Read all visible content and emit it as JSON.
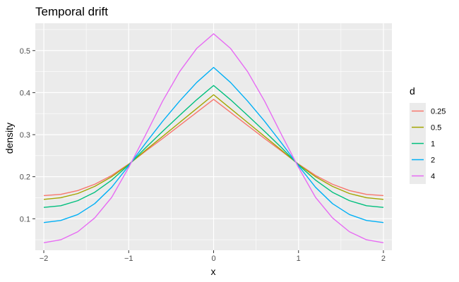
{
  "chart_data": {
    "type": "line",
    "title": "Temporal drift",
    "xlabel": "x",
    "ylabel": "density",
    "xlim": [
      -2.1,
      2.1
    ],
    "ylim": [
      0.025,
      0.565
    ],
    "x_ticks": [
      -2,
      -1,
      0,
      1,
      2
    ],
    "x_tick_labels": [
      "−2",
      "−1",
      "0",
      "1",
      "2"
    ],
    "y_ticks": [
      0.1,
      0.2,
      0.3,
      0.4,
      0.5
    ],
    "y_tick_labels": [
      "0.1",
      "0.2",
      "0.3",
      "0.4",
      "0.5"
    ],
    "grid": true,
    "legend_position": "right",
    "legend_title": "d",
    "x": [
      -2.0,
      -1.8,
      -1.6,
      -1.4,
      -1.2,
      -1.0,
      -0.8,
      -0.6,
      -0.4,
      -0.2,
      0.0,
      0.2,
      0.4,
      0.6,
      0.8,
      1.0,
      1.2,
      1.4,
      1.6,
      1.8,
      2.0
    ],
    "series": [
      {
        "name": "0.25",
        "color": "#F8766D",
        "values": [
          0.155,
          0.158,
          0.167,
          0.182,
          0.203,
          0.23,
          0.261,
          0.291,
          0.322,
          0.353,
          0.384,
          0.353,
          0.322,
          0.291,
          0.261,
          0.23,
          0.203,
          0.182,
          0.167,
          0.158,
          0.155
        ]
      },
      {
        "name": "0.5",
        "color": "#A3A500",
        "values": [
          0.146,
          0.15,
          0.16,
          0.177,
          0.2,
          0.229,
          0.263,
          0.296,
          0.329,
          0.362,
          0.395,
          0.362,
          0.329,
          0.296,
          0.263,
          0.229,
          0.2,
          0.177,
          0.16,
          0.15,
          0.146
        ]
      },
      {
        "name": "1",
        "color": "#00BF7D",
        "values": [
          0.127,
          0.131,
          0.143,
          0.163,
          0.192,
          0.228,
          0.269,
          0.308,
          0.346,
          0.383,
          0.417,
          0.383,
          0.346,
          0.308,
          0.269,
          0.228,
          0.192,
          0.163,
          0.143,
          0.131,
          0.127
        ]
      },
      {
        "name": "2",
        "color": "#00B0F6",
        "values": [
          0.091,
          0.096,
          0.11,
          0.136,
          0.175,
          0.226,
          0.28,
          0.332,
          0.38,
          0.424,
          0.46,
          0.424,
          0.38,
          0.332,
          0.28,
          0.226,
          0.175,
          0.136,
          0.11,
          0.096,
          0.091
        ]
      },
      {
        "name": "4",
        "color": "#E76BF3",
        "values": [
          0.043,
          0.05,
          0.069,
          0.102,
          0.151,
          0.222,
          0.3,
          0.38,
          0.45,
          0.505,
          0.54,
          0.505,
          0.45,
          0.38,
          0.3,
          0.222,
          0.151,
          0.102,
          0.069,
          0.05,
          0.043
        ]
      }
    ]
  }
}
